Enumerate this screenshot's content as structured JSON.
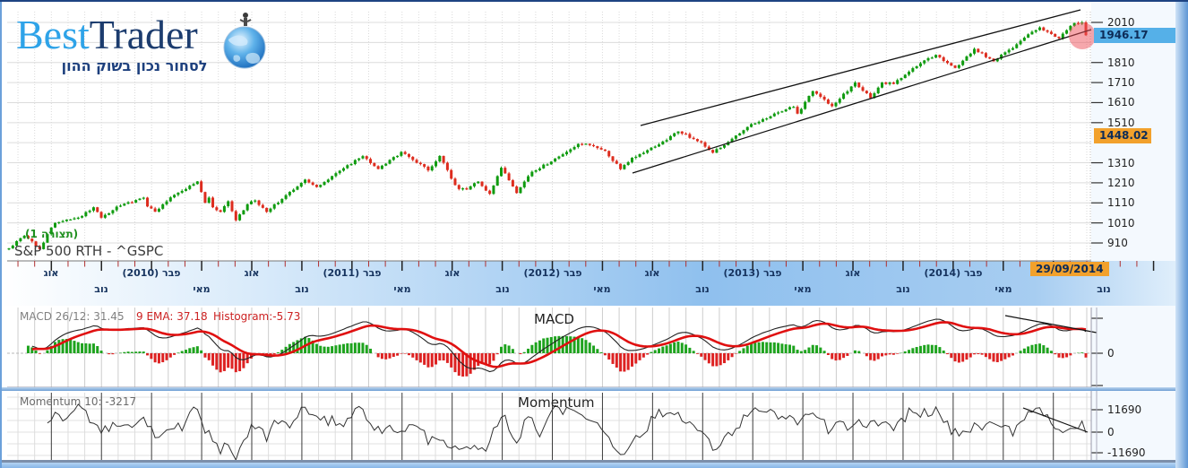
{
  "logo": {
    "best": "Best",
    "trader": "Trader",
    "tagline": "לסחור נכון בשוק ההון"
  },
  "main_chart": {
    "overlay_label": "(תצורה 1)",
    "symbol_label": "S&P 500 RTH - ^GSPC",
    "last_price_tag": "1946.17",
    "level_tag": "1448.02",
    "date_tag": "29/09/2014",
    "y_axis_values": [
      2010,
      1810,
      1710,
      1610,
      1510,
      1310,
      1210,
      1110,
      1010,
      910
    ]
  },
  "x_axis": {
    "month_labels": [
      {
        "m": 3,
        "text": "אוג",
        "row": 1
      },
      {
        "m": 6,
        "text": "נוב",
        "row": 2
      },
      {
        "m": 9,
        "text": "פבר (2010)",
        "row": 1
      },
      {
        "m": 12,
        "text": "מאי",
        "row": 2
      },
      {
        "m": 15,
        "text": "אוג",
        "row": 1
      },
      {
        "m": 18,
        "text": "נוב",
        "row": 2
      },
      {
        "m": 21,
        "text": "פבר (2011)",
        "row": 1
      },
      {
        "m": 24,
        "text": "מאי",
        "row": 2
      },
      {
        "m": 27,
        "text": "אוג",
        "row": 1
      },
      {
        "m": 30,
        "text": "נוב",
        "row": 2
      },
      {
        "m": 33,
        "text": "פבר (2012)",
        "row": 1
      },
      {
        "m": 36,
        "text": "מאי",
        "row": 2
      },
      {
        "m": 39,
        "text": "אוג",
        "row": 1
      },
      {
        "m": 42,
        "text": "נוב",
        "row": 2
      },
      {
        "m": 45,
        "text": "פבר (2013)",
        "row": 1
      },
      {
        "m": 48,
        "text": "מאי",
        "row": 2
      },
      {
        "m": 51,
        "text": "אוג",
        "row": 1
      },
      {
        "m": 54,
        "text": "נוב",
        "row": 2
      },
      {
        "m": 57,
        "text": "פבר (2014)",
        "row": 1
      },
      {
        "m": 60,
        "text": "מאי",
        "row": 2
      },
      {
        "m": 66,
        "text": "נוב",
        "row": 2
      }
    ]
  },
  "macd": {
    "param_label": "MACD 26/12: 31.45",
    "ema_label": "9 EMA: 37.18",
    "hist_label": "Histogram:-5.73",
    "title": "MACD",
    "zero_label": "0"
  },
  "momentum": {
    "param_label": "Momentum 10: -3217",
    "title": "Momentum",
    "y_tick_values": [
      11690,
      0,
      -11690
    ]
  },
  "colors": {
    "up": "#0f9b0f",
    "down": "#dd2c1e",
    "macd_line": "#222222",
    "signal_line": "#e01010",
    "hist_up": "#1ea31e",
    "hist_down": "#dd2222",
    "momentum_line": "#333333",
    "tag_blue": "#55b0e8",
    "tag_orange": "#f2a12c",
    "minor_tick": "#b03030",
    "major_tick": "#222222",
    "grid": "#dcdcdc",
    "channel": "#111111",
    "highlight_circle": "rgba(238,80,90,0.5)"
  },
  "chart_data": [
    {
      "type": "candlestick",
      "name": "S&P 500 RTH - ^GSPC",
      "timeframe": "weekly",
      "x_range": [
        "2009-05",
        "2014-09-29"
      ],
      "ylim": [
        860,
        2060
      ],
      "y_ticks": [
        910,
        1010,
        1110,
        1210,
        1310,
        1410,
        1510,
        1610,
        1710,
        1810,
        1910,
        2010
      ],
      "last_close": 1946.17,
      "highlighted_level": 1448.02,
      "annotations": [
        "ascending channel 2012-2014",
        "red highlight circle on last candles"
      ],
      "close_anchors": [
        [
          0,
          883
        ],
        [
          2,
          919
        ],
        [
          4,
          946
        ],
        [
          8,
          879
        ],
        [
          11,
          987
        ],
        [
          12,
          1010
        ],
        [
          19,
          1044
        ],
        [
          22,
          1088
        ],
        [
          24,
          1036
        ],
        [
          28,
          1091
        ],
        [
          35,
          1136
        ],
        [
          36,
          1092
        ],
        [
          38,
          1066
        ],
        [
          43,
          1150
        ],
        [
          49,
          1217
        ],
        [
          51,
          1111
        ],
        [
          52,
          1136
        ],
        [
          53,
          1088
        ],
        [
          55,
          1065
        ],
        [
          57,
          1118
        ],
        [
          59,
          1023
        ],
        [
          62,
          1103
        ],
        [
          64,
          1122
        ],
        [
          67,
          1065
        ],
        [
          73,
          1165
        ],
        [
          77,
          1226
        ],
        [
          80,
          1189
        ],
        [
          85,
          1258
        ],
        [
          92,
          1343
        ],
        [
          96,
          1279
        ],
        [
          102,
          1364
        ],
        [
          109,
          1272
        ],
        [
          112,
          1344
        ],
        [
          116,
          1199
        ],
        [
          117,
          1179
        ],
        [
          119,
          1177
        ],
        [
          122,
          1216
        ],
        [
          125,
          1155
        ],
        [
          128,
          1285
        ],
        [
          132,
          1159
        ],
        [
          136,
          1265
        ],
        [
          141,
          1316
        ],
        [
          148,
          1404
        ],
        [
          151,
          1398
        ],
        [
          155,
          1369
        ],
        [
          159,
          1278
        ],
        [
          162,
          1335
        ],
        [
          168,
          1391
        ],
        [
          174,
          1466
        ],
        [
          180,
          1412
        ],
        [
          183,
          1360
        ],
        [
          188,
          1430
        ],
        [
          193,
          1503
        ],
        [
          200,
          1561
        ],
        [
          204,
          1589
        ],
        [
          205,
          1555
        ],
        [
          209,
          1667
        ],
        [
          214,
          1592
        ],
        [
          220,
          1710
        ],
        [
          224,
          1633
        ],
        [
          227,
          1710
        ],
        [
          230,
          1703
        ],
        [
          237,
          1806
        ],
        [
          241,
          1848
        ],
        [
          246,
          1783
        ],
        [
          247,
          1797
        ],
        [
          251,
          1878
        ],
        [
          256,
          1816
        ],
        [
          262,
          1901
        ],
        [
          266,
          1963
        ],
        [
          268,
          1985
        ],
        [
          273,
          1931
        ],
        [
          277,
          2007
        ],
        [
          279,
          2010
        ],
        [
          280,
          1946.17
        ]
      ]
    },
    {
      "type": "line",
      "name": "MACD",
      "params": "26/12, signal EMA 9",
      "last_values": {
        "macd": 31.45,
        "ema9": 37.18,
        "histogram": -5.73
      },
      "y_zero_label": "0",
      "derived_from": "close_anchors series above"
    },
    {
      "type": "line",
      "name": "Momentum",
      "params": "10",
      "last_value": -3217,
      "y_ticks": [
        11690,
        0,
        -11690
      ],
      "derived_from": "close_anchors series above"
    }
  ]
}
